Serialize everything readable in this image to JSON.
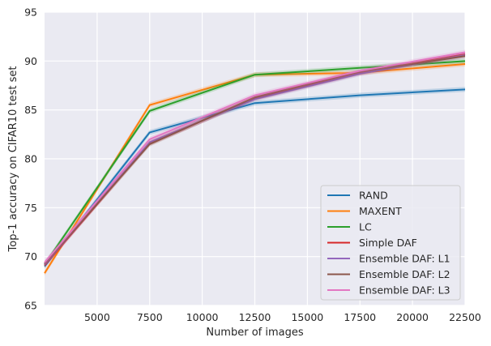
{
  "chart_data": {
    "type": "line",
    "title": "",
    "xlabel": "Number of images",
    "ylabel": "Top-1 accuracy on CIFAR10 test set",
    "xlim": [
      2500,
      22500
    ],
    "ylim": [
      65,
      95
    ],
    "xticks": [
      5000,
      7500,
      10000,
      12500,
      15000,
      17500,
      20000,
      22500
    ],
    "yticks": [
      65,
      70,
      75,
      80,
      85,
      90,
      95
    ],
    "grid": true,
    "legend_position": "lower-right",
    "x": [
      2500,
      7500,
      12500,
      17500,
      22500
    ],
    "series": [
      {
        "name": "RAND",
        "color": "#1f77b4",
        "values": [
          69.0,
          82.7,
          85.7,
          86.5,
          87.1
        ]
      },
      {
        "name": "MAXENT",
        "color": "#ff7f0e",
        "values": [
          68.3,
          85.5,
          88.6,
          88.8,
          89.7
        ]
      },
      {
        "name": "LC",
        "color": "#2ca02c",
        "values": [
          69.2,
          84.9,
          88.6,
          89.3,
          90.0
        ]
      },
      {
        "name": "Simple DAF",
        "color": "#d62728",
        "values": [
          69.1,
          81.6,
          86.2,
          88.8,
          90.7
        ]
      },
      {
        "name": "Ensemble DAF: L1",
        "color": "#9467bd",
        "values": [
          69.2,
          81.7,
          86.1,
          88.7,
          90.6
        ]
      },
      {
        "name": "Ensemble DAF: L2",
        "color": "#8c564b",
        "values": [
          69.3,
          81.5,
          86.3,
          88.9,
          90.5
        ]
      },
      {
        "name": "Ensemble DAF: L3",
        "color": "#e377c2",
        "values": [
          69.4,
          82.0,
          86.5,
          89.0,
          90.9
        ]
      }
    ]
  }
}
